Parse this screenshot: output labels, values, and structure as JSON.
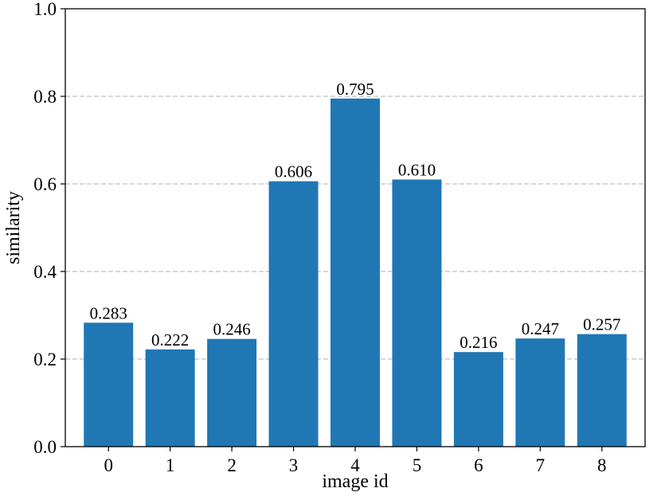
{
  "chart_data": {
    "type": "bar",
    "title": "",
    "xlabel": "image id",
    "ylabel": "similarity",
    "categories": [
      "0",
      "1",
      "2",
      "3",
      "4",
      "5",
      "6",
      "7",
      "8"
    ],
    "values": [
      0.283,
      0.222,
      0.246,
      0.606,
      0.795,
      0.61,
      0.216,
      0.247,
      0.257
    ],
    "value_labels": [
      "0.283",
      "0.222",
      "0.246",
      "0.606",
      "0.795",
      "0.610",
      "0.216",
      "0.247",
      "0.257"
    ],
    "ylim": [
      0.0,
      1.0
    ],
    "yticks": [
      0.0,
      0.2,
      0.4,
      0.6,
      0.8,
      1.0
    ],
    "ytick_labels": [
      "0.0",
      "0.2",
      "0.4",
      "0.6",
      "0.8",
      "1.0"
    ],
    "grid": "y-dashed",
    "bar_color": "#1f77b4",
    "legend": "none"
  }
}
